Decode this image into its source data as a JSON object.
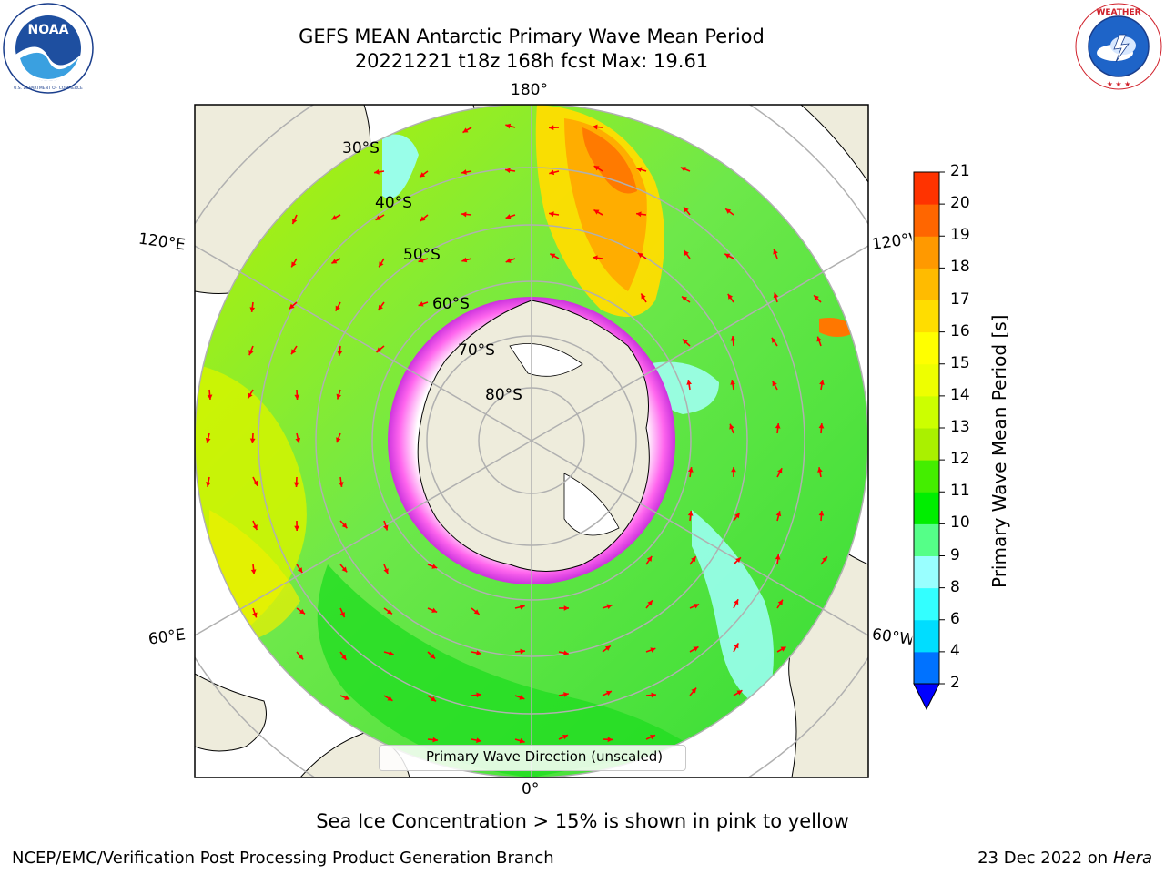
{
  "header": {
    "title_line1": "GEFS MEAN Antarctic Primary Wave Mean Period",
    "title_line2": "20221221 t18z 168h fcst   Max: 19.61"
  },
  "logos": {
    "left": "noara-logo",
    "right": "nws-logo",
    "left_text": "NOAA",
    "left_ring_text": "NATIONAL OCEANIC AND ATMOSPHERIC ADMINISTRATION · U.S. DEPARTMENT OF COMMERCE",
    "right_ring_text": "NATIONAL WEATHER SERVICE"
  },
  "map": {
    "longitude_labels": {
      "top": "180°",
      "bottom": "0°",
      "upper_left": "120°E",
      "lower_left": "60°E",
      "upper_right": "120°W",
      "lower_right": "60°W"
    },
    "latitude_labels": [
      "30°S",
      "40°S",
      "50°S",
      "60°S",
      "70°S",
      "80°S"
    ],
    "colors": {
      "land": "#eeecdc",
      "ocean_green": "#53e33b",
      "ocean_yellowgreen": "#b5f000",
      "ocean_light": "#8ef58a",
      "ice_pink": "#ee55e0",
      "ice_white": "#ffffff",
      "arrow": "#ff0000",
      "grid": "#b0b0b0"
    }
  },
  "legend": {
    "label": "Primary Wave Direction (unscaled)"
  },
  "colorbar": {
    "label": "Primary Wave Mean Period [s]",
    "ticks": [
      "2",
      "4",
      "6",
      "8",
      "9",
      "10",
      "11",
      "12",
      "13",
      "14",
      "15",
      "16",
      "17",
      "18",
      "19",
      "20",
      "21"
    ],
    "colors": [
      "#0072ff",
      "#00ddff",
      "#33ffff",
      "#99ffff",
      "#55ff88",
      "#00ee00",
      "#44ee00",
      "#aaf000",
      "#ccff00",
      "#eeff00",
      "#ffff00",
      "#ffdd00",
      "#ffbb00",
      "#ff9900",
      "#ff6600",
      "#ff3300"
    ],
    "under_color": "#0000ff",
    "top_color": "#ff0000"
  },
  "caption": "Sea Ice Concentration > 15% is shown in pink to yellow",
  "footer": {
    "left": "NCEP/EMC/Verification Post Processing Product Generation Branch",
    "right_date": "23 Dec 2022 on",
    "right_machine": "Hera"
  }
}
